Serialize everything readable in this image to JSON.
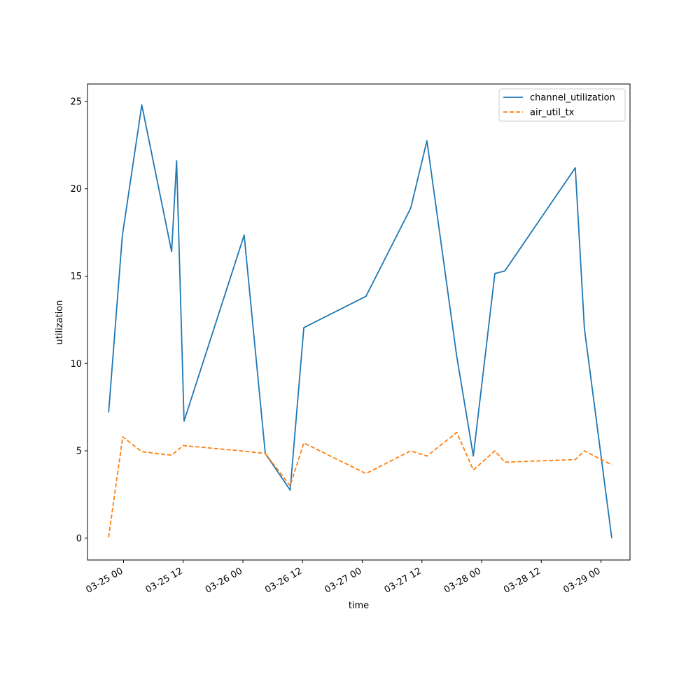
{
  "chart_data": {
    "type": "line",
    "title": "",
    "xlabel": "time",
    "ylabel": "utilization",
    "x_ticks": [
      "03-25 00",
      "03-25 12",
      "03-26 00",
      "03-26 12",
      "03-27 00",
      "03-27 12",
      "03-28 00",
      "03-28 12",
      "03-29 00"
    ],
    "y_ticks": [
      "0",
      "5",
      "10",
      "15",
      "20",
      "25"
    ],
    "ylim": [
      -1.25,
      26.0
    ],
    "xlim": [
      "2024-03-24 16:45",
      "2024-03-29 05:50"
    ],
    "grid": false,
    "legend_position": "top-right",
    "series": [
      {
        "name": "channel_utilization",
        "color": "#1f77b4",
        "style": "solid",
        "points": [
          [
            "2024-03-24 21:00",
            7.2
          ],
          [
            "2024-03-24 23:45",
            17.3
          ],
          [
            "2024-03-25 03:40",
            24.8
          ],
          [
            "2024-03-25 09:40",
            16.4
          ],
          [
            "2024-03-25 10:40",
            21.6
          ],
          [
            "2024-03-25 12:10",
            6.7
          ],
          [
            "2024-03-26 00:15",
            17.35
          ],
          [
            "2024-03-26 04:30",
            4.85
          ],
          [
            "2024-03-26 09:30",
            2.75
          ],
          [
            "2024-03-26 12:15",
            12.05
          ],
          [
            "2024-03-27 00:45",
            13.85
          ],
          [
            "2024-03-27 09:45",
            18.9
          ],
          [
            "2024-03-27 13:00",
            22.75
          ],
          [
            "2024-03-27 19:00",
            10.4
          ],
          [
            "2024-03-27 22:20",
            4.7
          ],
          [
            "2024-03-28 02:40",
            15.15
          ],
          [
            "2024-03-28 04:40",
            15.3
          ],
          [
            "2024-03-28 18:50",
            21.2
          ],
          [
            "2024-03-28 20:40",
            12.0
          ],
          [
            "2024-03-29 02:10",
            0.0
          ]
        ]
      },
      {
        "name": "air_util_tx",
        "color": "#ff7f0e",
        "style": "dashed",
        "points": [
          [
            "2024-03-24 21:00",
            0.05
          ],
          [
            "2024-03-24 23:50",
            5.8
          ],
          [
            "2024-03-25 03:40",
            4.95
          ],
          [
            "2024-03-25 09:40",
            4.75
          ],
          [
            "2024-03-25 12:00",
            5.3
          ],
          [
            "2024-03-26 00:15",
            4.98
          ],
          [
            "2024-03-26 04:30",
            4.85
          ],
          [
            "2024-03-26 09:30",
            3.0
          ],
          [
            "2024-03-26 12:15",
            5.45
          ],
          [
            "2024-03-27 00:45",
            3.7
          ],
          [
            "2024-03-27 09:45",
            5.0
          ],
          [
            "2024-03-27 13:00",
            4.7
          ],
          [
            "2024-03-27 19:00",
            6.05
          ],
          [
            "2024-03-27 22:20",
            3.9
          ],
          [
            "2024-03-28 02:40",
            5.0
          ],
          [
            "2024-03-28 04:40",
            4.35
          ],
          [
            "2024-03-28 18:50",
            4.5
          ],
          [
            "2024-03-28 20:40",
            5.0
          ],
          [
            "2024-03-29 02:10",
            4.2
          ]
        ]
      }
    ]
  }
}
